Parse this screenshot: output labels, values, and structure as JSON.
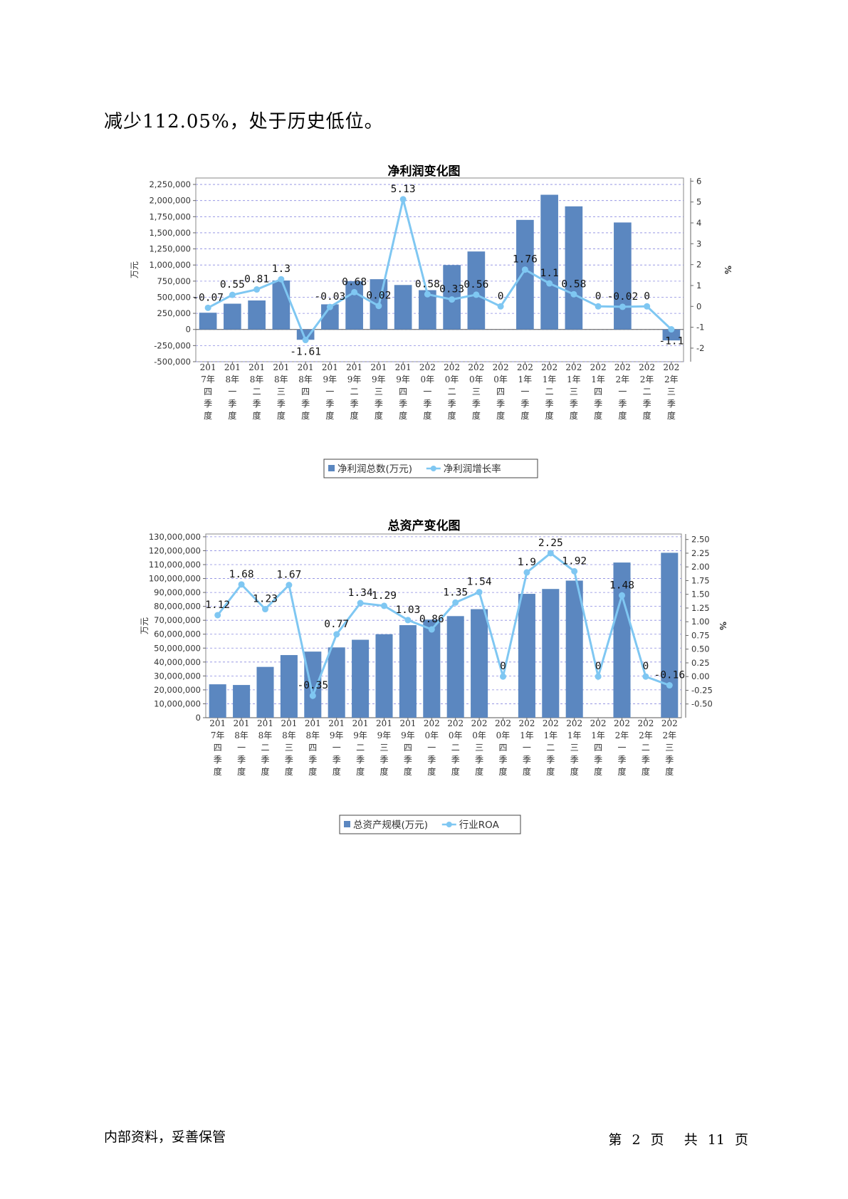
{
  "body_text": "减少112.05%，处于历史低位。",
  "chart_data": [
    {
      "type": "bar",
      "title": "净利润变化图",
      "categories": [
        "2017年四季度",
        "2018年一季度",
        "2018年二季度",
        "2018年三季度",
        "2018年四季度",
        "2019年一季度",
        "2019年二季度",
        "2019年三季度",
        "2019年四季度",
        "2020年一季度",
        "2020年二季度",
        "2020年三季度",
        "2020年四季度",
        "2021年一季度",
        "2021年二季度",
        "2021年三季度",
        "2021年四季度",
        "2022年一季度",
        "2022年二季度",
        "2022年三季度"
      ],
      "category_lines": [
        [
          "201",
          "7年",
          "四",
          "季",
          "度"
        ],
        [
          "201",
          "8年",
          "一",
          "季",
          "度"
        ],
        [
          "201",
          "8年",
          "二",
          "季",
          "度"
        ],
        [
          "201",
          "8年",
          "三",
          "季",
          "度"
        ],
        [
          "201",
          "8年",
          "四",
          "季",
          "度"
        ],
        [
          "201",
          "9年",
          "一",
          "季",
          "度"
        ],
        [
          "201",
          "9年",
          "二",
          "季",
          "度"
        ],
        [
          "201",
          "9年",
          "三",
          "季",
          "度"
        ],
        [
          "201",
          "9年",
          "四",
          "季",
          "度"
        ],
        [
          "202",
          "0年",
          "一",
          "季",
          "度"
        ],
        [
          "202",
          "0年",
          "二",
          "季",
          "度"
        ],
        [
          "202",
          "0年",
          "三",
          "季",
          "度"
        ],
        [
          "202",
          "0年",
          "四",
          "季",
          "度"
        ],
        [
          "202",
          "1年",
          "一",
          "季",
          "度"
        ],
        [
          "202",
          "1年",
          "二",
          "季",
          "度"
        ],
        [
          "202",
          "1年",
          "三",
          "季",
          "度"
        ],
        [
          "202",
          "1年",
          "四",
          "季",
          "度"
        ],
        [
          "202",
          "2年",
          "一",
          "季",
          "度"
        ],
        [
          "202",
          "2年",
          "二",
          "季",
          "度"
        ],
        [
          "202",
          "2年",
          "三",
          "季",
          "度"
        ]
      ],
      "ylabel": "万元",
      "y2label": "%",
      "ylim": [
        -500000,
        2350000
      ],
      "yticks": [
        -500000,
        -250000,
        0,
        250000,
        500000,
        750000,
        1000000,
        1250000,
        1500000,
        1750000,
        2000000,
        2250000
      ],
      "ytick_labels": [
        "-500,000",
        "-250,000",
        "0",
        "250,000",
        "500,000",
        "750,000",
        "1,000,000",
        "1,250,000",
        "1,500,000",
        "1,750,000",
        "2,000,000",
        "2,250,000"
      ],
      "y2lim": [
        -2.65,
        6.15
      ],
      "y2ticks": [
        -2,
        -1,
        0,
        1,
        2,
        3,
        4,
        5,
        6
      ],
      "y2tick_labels": [
        "-2",
        "-1",
        "0",
        "1",
        "2",
        "3",
        "4",
        "5",
        "6"
      ],
      "grid": true,
      "legend_position": "bottom",
      "series": [
        {
          "name": "净利润总数(万元)",
          "kind": "bar",
          "axis": "left",
          "color": "#5b87c0",
          "values": [
            260000,
            400000,
            450000,
            760000,
            -160000,
            390000,
            750000,
            780000,
            690000,
            610000,
            1000000,
            1210000,
            null,
            1700000,
            2090000,
            1910000,
            null,
            1660000,
            null,
            -170000
          ]
        },
        {
          "name": "净利润增长率",
          "kind": "line",
          "axis": "right",
          "color": "#7fc7f2",
          "values": [
            -0.07,
            0.55,
            0.81,
            1.3,
            -1.61,
            -0.03,
            0.68,
            0.02,
            5.13,
            0.58,
            0.33,
            0.56,
            0,
            1.76,
            1.1,
            0.58,
            0,
            -0.02,
            0,
            -1.1
          ],
          "labels": [
            "-0.07",
            "0.55",
            "0.81",
            "1.3",
            "-1.61",
            "-0.03",
            "0.68",
            "0.02",
            "5.13",
            "0.58",
            "0.33",
            "0.56",
            "0",
            "1.76",
            "1.1",
            "0.58",
            "0",
            "-0.02",
            "0",
            "-1.1"
          ]
        }
      ]
    },
    {
      "type": "bar",
      "title": "总资产变化图",
      "categories": [
        "2017年四季度",
        "2018年一季度",
        "2018年二季度",
        "2018年三季度",
        "2018年四季度",
        "2019年一季度",
        "2019年二季度",
        "2019年三季度",
        "2019年四季度",
        "2020年一季度",
        "2020年二季度",
        "2020年三季度",
        "2020年四季度",
        "2021年一季度",
        "2021年二季度",
        "2021年三季度",
        "2021年四季度",
        "2022年一季度",
        "2022年二季度",
        "2022年三季度"
      ],
      "category_lines": [
        [
          "201",
          "7年",
          "四",
          "季",
          "度"
        ],
        [
          "201",
          "8年",
          "一",
          "季",
          "度"
        ],
        [
          "201",
          "8年",
          "二",
          "季",
          "度"
        ],
        [
          "201",
          "8年",
          "三",
          "季",
          "度"
        ],
        [
          "201",
          "8年",
          "四",
          "季",
          "度"
        ],
        [
          "201",
          "9年",
          "一",
          "季",
          "度"
        ],
        [
          "201",
          "9年",
          "二",
          "季",
          "度"
        ],
        [
          "201",
          "9年",
          "三",
          "季",
          "度"
        ],
        [
          "201",
          "9年",
          "四",
          "季",
          "度"
        ],
        [
          "202",
          "0年",
          "一",
          "季",
          "度"
        ],
        [
          "202",
          "0年",
          "二",
          "季",
          "度"
        ],
        [
          "202",
          "0年",
          "三",
          "季",
          "度"
        ],
        [
          "202",
          "0年",
          "四",
          "季",
          "度"
        ],
        [
          "202",
          "1年",
          "一",
          "季",
          "度"
        ],
        [
          "202",
          "1年",
          "二",
          "季",
          "度"
        ],
        [
          "202",
          "1年",
          "三",
          "季",
          "度"
        ],
        [
          "202",
          "1年",
          "四",
          "季",
          "度"
        ],
        [
          "202",
          "2年",
          "一",
          "季",
          "度"
        ],
        [
          "202",
          "2年",
          "二",
          "季",
          "度"
        ],
        [
          "202",
          "2年",
          "三",
          "季",
          "度"
        ]
      ],
      "ylabel": "万元",
      "y2label": "%",
      "ylim": [
        0,
        132000000
      ],
      "yticks": [
        0,
        10000000,
        20000000,
        30000000,
        40000000,
        50000000,
        60000000,
        70000000,
        80000000,
        90000000,
        100000000,
        110000000,
        120000000,
        130000000
      ],
      "ytick_labels": [
        "0",
        "10,000,000",
        "20,000,000",
        "30,000,000",
        "40,000,000",
        "50,000,000",
        "60,000,000",
        "70,000,000",
        "80,000,000",
        "90,000,000",
        "100,000,000",
        "110,000,000",
        "120,000,000",
        "130,000,000"
      ],
      "y2lim": [
        -0.75,
        2.6
      ],
      "y2ticks": [
        -0.5,
        -0.25,
        0,
        0.25,
        0.5,
        0.75,
        1,
        1.25,
        1.5,
        1.75,
        2,
        2.25,
        2.5
      ],
      "y2tick_labels": [
        "-0.50",
        "-0.25",
        "0.00",
        "0.25",
        "0.50",
        "0.75",
        "1.00",
        "1.25",
        "1.50",
        "1.75",
        "2.00",
        "2.25",
        "2.50"
      ],
      "grid": true,
      "legend_position": "bottom",
      "series": [
        {
          "name": "总资产规模(万元)",
          "kind": "bar",
          "axis": "left",
          "color": "#5b87c0",
          "values": [
            24000000,
            23500000,
            36500000,
            45000000,
            47500000,
            50500000,
            56000000,
            60000000,
            66500000,
            70500000,
            73000000,
            78000000,
            null,
            89000000,
            92500000,
            98500000,
            null,
            111500000,
            null,
            118500000
          ]
        },
        {
          "name": "行业ROA",
          "kind": "line",
          "axis": "right",
          "color": "#7fc7f2",
          "values": [
            1.12,
            1.68,
            1.23,
            1.67,
            -0.35,
            0.77,
            1.34,
            1.29,
            1.03,
            0.86,
            1.35,
            1.54,
            0,
            1.9,
            2.25,
            1.92,
            0,
            1.48,
            0,
            -0.16
          ],
          "labels": [
            "1.12",
            "1.68",
            "1.23",
            "1.67",
            "-0.35",
            "0.77",
            "1.34",
            "1.29",
            "1.03",
            "0.86",
            "1.35",
            "1.54",
            "0",
            "1.9",
            "2.25",
            "1.92",
            "0",
            "1.48",
            "0",
            "-0.16"
          ]
        }
      ]
    }
  ],
  "footer": {
    "left": "内部资料，妥善保管",
    "page_word_di": "第",
    "page_current": "2",
    "page_word_ye": "页",
    "page_word_gong": "共",
    "page_total": "11",
    "page_word_ye2": "页"
  }
}
